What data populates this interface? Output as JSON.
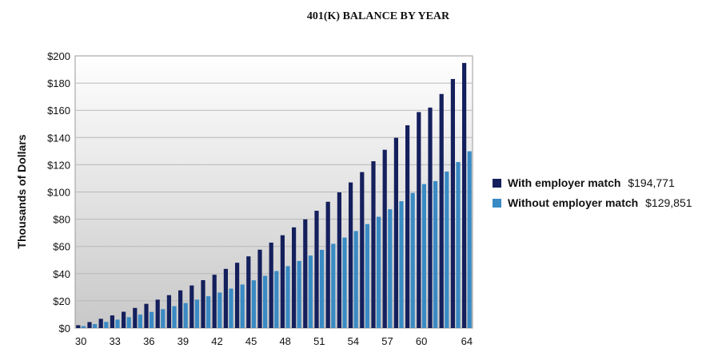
{
  "chart_data": {
    "type": "bar",
    "title": "401(K) BALANCE BY YEAR",
    "ylabel": "Thousands of Dollars",
    "xlabel": "",
    "ylim": [
      0,
      200
    ],
    "y_ticks": [
      0,
      20,
      40,
      60,
      80,
      100,
      120,
      140,
      160,
      180,
      200
    ],
    "y_tick_labels": [
      "$0",
      "$20",
      "$40",
      "$60",
      "$80",
      "$100",
      "$120",
      "$140",
      "$160",
      "$180",
      "$200"
    ],
    "x_tick_labels": [
      "30",
      "33",
      "36",
      "39",
      "42",
      "45",
      "48",
      "51",
      "54",
      "57",
      "60",
      "64"
    ],
    "categories": [
      30,
      31,
      32,
      33,
      34,
      35,
      36,
      37,
      38,
      39,
      40,
      41,
      42,
      43,
      44,
      45,
      46,
      47,
      48,
      49,
      50,
      51,
      52,
      53,
      54,
      55,
      56,
      57,
      58,
      59,
      60,
      61,
      62,
      63,
      64
    ],
    "grid": true,
    "legend_position": "right",
    "series": [
      {
        "name": "With employer match",
        "final_value": "$194,771",
        "color": "#141f5c",
        "values": [
          2.1,
          4.4,
          6.8,
          9.3,
          12.0,
          14.8,
          17.8,
          20.9,
          24.2,
          27.7,
          31.3,
          35.2,
          39.2,
          43.5,
          48.0,
          52.7,
          57.6,
          62.8,
          68.2,
          74.0,
          79.9,
          86.2,
          92.8,
          99.7,
          107.0,
          114.6,
          122.6,
          131.0,
          139.8,
          149.0,
          158.7,
          162.0,
          172.0,
          183.0,
          194.8
        ]
      },
      {
        "name": "Without employer match",
        "final_value": "$129,851",
        "color": "#3a8ac4",
        "values": [
          1.4,
          2.9,
          4.5,
          6.2,
          8.0,
          9.9,
          11.9,
          13.9,
          16.1,
          18.4,
          20.9,
          23.4,
          26.1,
          29.0,
          32.0,
          35.1,
          38.4,
          41.9,
          45.5,
          49.3,
          53.3,
          57.5,
          61.9,
          66.5,
          71.3,
          76.4,
          81.8,
          87.3,
          93.2,
          99.3,
          105.8,
          108.0,
          115.0,
          122.0,
          129.9
        ]
      }
    ]
  }
}
